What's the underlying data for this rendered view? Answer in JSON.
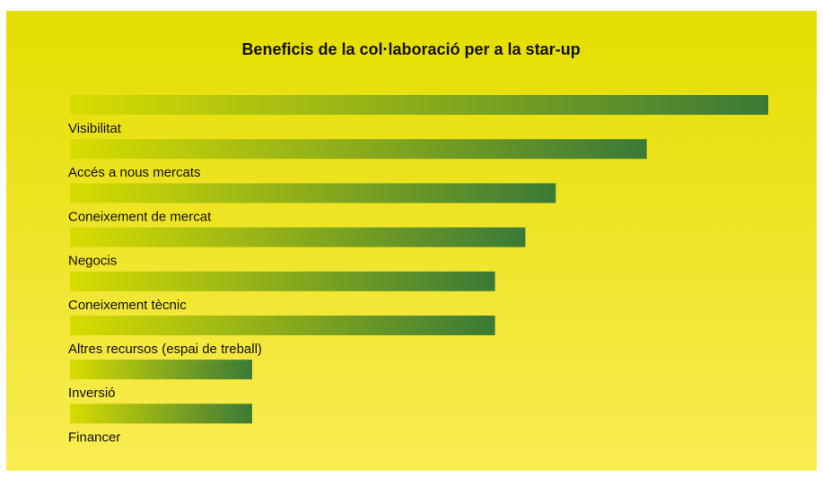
{
  "chart_data": {
    "type": "bar",
    "orientation": "horizontal",
    "title": "Beneficis de la col·laboració per a la star-up",
    "categories": [
      "Visibilitat",
      "Accés a nous mercats",
      "Coneixement de mercat",
      "Negocis",
      "Coneixement tècnic",
      "Altres recursos (espai de treball)",
      "Inversió",
      "Financer"
    ],
    "values": [
      23,
      19,
      16,
      15,
      14,
      14,
      6,
      6
    ],
    "color": "#3b7a36"
  }
}
